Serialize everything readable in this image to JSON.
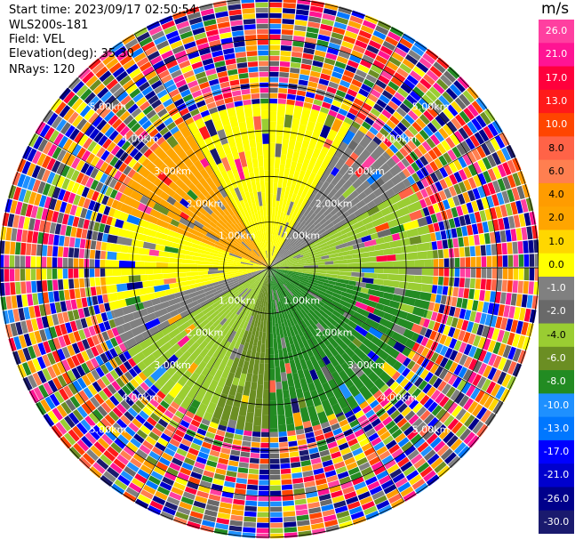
{
  "header": {
    "start_time": "Start time: 2023/09/17 02:50:54",
    "instrument": "WLS200s-181",
    "field": "Field: VEL",
    "elevation": "Elevation(deg): 35.30",
    "nrays": "NRays: 120"
  },
  "chart_data": {
    "type": "heatmap",
    "subtype": "ppi-polar",
    "title": "",
    "field": "VEL",
    "units": "m/s",
    "n_rays": 120,
    "range_rings": [
      {
        "label": "1.00km",
        "km": 1.0
      },
      {
        "label": "2.00km",
        "km": 2.0
      },
      {
        "label": "3.00km",
        "km": 3.0
      },
      {
        "label": "4.00km",
        "km": 4.0
      },
      {
        "label": "5.00km",
        "km": 5.0
      }
    ],
    "max_range_km": 5.9,
    "colorbar": {
      "title": "m/s",
      "ticks": [
        "26.0",
        "21.0",
        "17.0",
        "13.0",
        "10.0",
        "8.0",
        "6.0",
        "4.0",
        "2.0",
        "1.0",
        "0.0",
        "-1.0",
        "-2.0",
        "-4.0",
        "-6.0",
        "-8.0",
        "-10.0",
        "-13.0",
        "-17.0",
        "-21.0",
        "-26.0",
        "-30.0"
      ],
      "colors": [
        "#ff3fa0",
        "#ff1493",
        "#ff003c",
        "#ff1a1a",
        "#ff4500",
        "#ff6347",
        "#ff7f50",
        "#ff9c00",
        "#ffa500",
        "#ffd700",
        "#ffff00",
        "#808080",
        "#696969",
        "#9acd32",
        "#6b8e23",
        "#228b22",
        "#1e90ff",
        "#0077ff",
        "#0000ff",
        "#0000cd",
        "#00008b",
        "#1a1a6e"
      ]
    },
    "inner_sectors": [
      {
        "from_deg": 30,
        "to_deg": 60,
        "color": "#808080"
      },
      {
        "from_deg": 60,
        "to_deg": 100,
        "color": "#9acd32"
      },
      {
        "from_deg": 100,
        "to_deg": 180,
        "color": "#228b22"
      },
      {
        "from_deg": 180,
        "to_deg": 200,
        "color": "#6b8e23"
      },
      {
        "from_deg": 200,
        "to_deg": 240,
        "color": "#9acd32"
      },
      {
        "from_deg": 240,
        "to_deg": 255,
        "color": "#808080"
      },
      {
        "from_deg": 255,
        "to_deg": 290,
        "color": "#ffff00"
      },
      {
        "from_deg": 290,
        "to_deg": 330,
        "color": "#ffa500"
      },
      {
        "from_deg": 330,
        "to_deg": 390,
        "color": "#ffff00"
      }
    ],
    "noise_start_km": 3.6
  }
}
